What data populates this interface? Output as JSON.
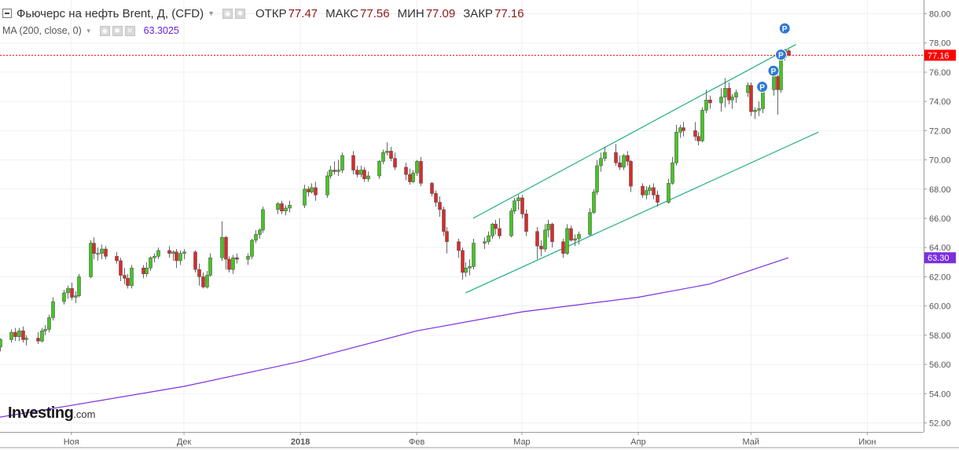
{
  "header": {
    "title": "Фьючерс на нефть Brent, Д, (CFD)",
    "open_label": "ОТКР",
    "open_value": "77.47",
    "high_label": "МАКС",
    "high_value": "77.56",
    "low_label": "МИН",
    "low_value": "77.09",
    "close_label": "ЗАКР",
    "close_value": "77.16"
  },
  "indicator": {
    "label": "MA (200, close, 0)",
    "value": "63.3025"
  },
  "logo": {
    "name": "Investing",
    "suffix": ".com"
  },
  "colors": {
    "up": "#43c71f",
    "down": "#dc2a2a",
    "ma": "#7b2fe0",
    "channel": "#1fae86",
    "last_price": "#ff0000",
    "grid": "#f0f0f0"
  },
  "icons": [
    "collapse-icon",
    "settings-icon",
    "gear-icon",
    "close-icon",
    "eye-icon"
  ],
  "chart_data": {
    "type": "candlestick",
    "title": "Фьючерс на нефть Brent, Д, (CFD)",
    "y_ticks": [
      "80.00",
      "78.00",
      "76.00",
      "74.00",
      "72.00",
      "70.00",
      "68.00",
      "66.00",
      "64.00",
      "62.00",
      "60.00",
      "58.00",
      "56.00",
      "54.00",
      "52.00"
    ],
    "ylim": [
      51.5,
      81
    ],
    "xlim": [
      "2017-10-13",
      "2018-06-16"
    ],
    "x_ticks": [
      {
        "date": "2017-11-01",
        "label": "Ноя"
      },
      {
        "date": "2017-12-01",
        "label": "Дек"
      },
      {
        "date": "2018-01-01",
        "label": "2018",
        "bold": true
      },
      {
        "date": "2018-02-01",
        "label": "Фев"
      },
      {
        "date": "2018-03-01",
        "label": "Мар"
      },
      {
        "date": "2018-04-01",
        "label": "Апр"
      },
      {
        "date": "2018-05-01",
        "label": "Май"
      },
      {
        "date": "2018-06-01",
        "label": "Июн"
      }
    ],
    "last_price": "77.16",
    "ma_last": "63.30",
    "candles": [
      [
        "2017-10-13",
        57.2,
        57.8,
        56.9,
        57.7
      ],
      [
        "2017-10-16",
        57.7,
        58.4,
        57.5,
        58.2
      ],
      [
        "2017-10-17",
        58.2,
        58.5,
        57.6,
        57.9
      ],
      [
        "2017-10-18",
        57.9,
        58.5,
        57.6,
        58.3
      ],
      [
        "2017-10-19",
        58.3,
        58.6,
        57.5,
        57.7
      ],
      [
        "2017-10-20",
        57.7,
        58.0,
        57.3,
        57.8
      ],
      [
        "2017-10-23",
        57.8,
        58.2,
        57.4,
        57.6
      ],
      [
        "2017-10-24",
        57.6,
        58.5,
        57.5,
        58.3
      ],
      [
        "2017-10-25",
        58.3,
        58.7,
        58.0,
        58.4
      ],
      [
        "2017-10-26",
        58.4,
        59.4,
        58.2,
        59.2
      ],
      [
        "2017-10-27",
        59.2,
        60.6,
        59.0,
        60.3
      ],
      [
        "2017-10-30",
        60.3,
        61.1,
        60.1,
        60.9
      ],
      [
        "2017-10-31",
        60.9,
        61.4,
        60.5,
        61.2
      ],
      [
        "2017-11-01",
        61.2,
        61.6,
        60.4,
        60.6
      ],
      [
        "2017-11-02",
        60.6,
        61.0,
        60.2,
        60.7
      ],
      [
        "2017-11-03",
        60.7,
        62.2,
        60.6,
        62.0
      ],
      [
        "2017-11-06",
        62.0,
        64.5,
        61.9,
        64.3
      ],
      [
        "2017-11-07",
        64.3,
        64.7,
        63.2,
        63.6
      ],
      [
        "2017-11-08",
        63.6,
        64.0,
        63.1,
        63.6
      ],
      [
        "2017-11-09",
        63.6,
        64.2,
        63.2,
        63.9
      ],
      [
        "2017-11-10",
        63.9,
        64.1,
        63.2,
        63.4
      ],
      [
        "2017-11-13",
        63.4,
        63.7,
        62.9,
        63.1
      ],
      [
        "2017-11-14",
        63.1,
        63.3,
        61.7,
        62.1
      ],
      [
        "2017-11-15",
        62.1,
        62.6,
        61.5,
        61.9
      ],
      [
        "2017-11-16",
        61.9,
        62.2,
        61.2,
        61.4
      ],
      [
        "2017-11-17",
        61.4,
        62.8,
        61.2,
        62.6
      ],
      [
        "2017-11-20",
        62.6,
        62.8,
        61.9,
        62.2
      ],
      [
        "2017-11-21",
        62.2,
        63.0,
        62.0,
        62.6
      ],
      [
        "2017-11-22",
        62.6,
        63.4,
        62.4,
        63.3
      ],
      [
        "2017-11-23",
        63.3,
        63.6,
        63.0,
        63.4
      ],
      [
        "2017-11-24",
        63.4,
        64.0,
        63.2,
        63.8
      ],
      [
        "2017-11-27",
        63.8,
        64.1,
        63.3,
        63.6
      ],
      [
        "2017-11-28",
        63.6,
        63.8,
        63.1,
        63.7
      ],
      [
        "2017-11-29",
        63.7,
        63.9,
        62.6,
        63.1
      ],
      [
        "2017-11-30",
        63.1,
        63.8,
        62.8,
        63.6
      ],
      [
        "2017-12-01",
        63.6,
        63.9,
        63.2,
        63.7
      ],
      [
        "2017-12-04",
        63.7,
        63.8,
        62.3,
        62.5
      ],
      [
        "2017-12-05",
        62.5,
        62.9,
        61.4,
        62.0
      ],
      [
        "2017-12-06",
        62.0,
        62.3,
        61.2,
        61.3
      ],
      [
        "2017-12-07",
        61.3,
        62.4,
        61.2,
        62.1
      ],
      [
        "2017-12-08",
        62.1,
        63.6,
        62.0,
        63.3
      ],
      [
        "2017-12-11",
        63.3,
        65.8,
        63.1,
        64.7
      ],
      [
        "2017-12-12",
        64.7,
        64.8,
        62.5,
        63.2
      ],
      [
        "2017-12-13",
        63.2,
        63.4,
        62.3,
        62.5
      ],
      [
        "2017-12-14",
        62.5,
        63.5,
        62.2,
        63.3
      ],
      [
        "2017-12-15",
        63.3,
        63.6,
        62.9,
        63.2
      ],
      [
        "2017-12-18",
        63.2,
        63.6,
        62.8,
        63.4
      ],
      [
        "2017-12-19",
        63.4,
        64.6,
        63.2,
        64.5
      ],
      [
        "2017-12-20",
        64.5,
        65.2,
        64.3,
        64.9
      ],
      [
        "2017-12-21",
        64.9,
        65.3,
        64.6,
        65.2
      ],
      [
        "2017-12-22",
        65.2,
        66.8,
        65.0,
        66.6
      ],
      [
        "2017-12-26",
        66.6,
        67.1,
        66.3,
        67.0
      ],
      [
        "2017-12-27",
        67.0,
        67.2,
        66.3,
        66.5
      ],
      [
        "2017-12-28",
        66.5,
        66.9,
        66.2,
        66.7
      ],
      [
        "2017-12-29",
        66.7,
        67.2,
        66.4,
        66.9
      ],
      [
        "2018-01-02",
        66.9,
        68.3,
        66.7,
        68.0
      ],
      [
        "2018-01-03",
        68.0,
        68.2,
        67.5,
        67.8
      ],
      [
        "2018-01-04",
        67.8,
        68.4,
        67.7,
        68.1
      ],
      [
        "2018-01-05",
        68.1,
        68.5,
        67.2,
        67.6
      ],
      [
        "2018-01-08",
        67.6,
        69.2,
        67.4,
        68.9
      ],
      [
        "2018-01-09",
        68.9,
        69.6,
        68.7,
        69.3
      ],
      [
        "2018-01-10",
        69.3,
        69.9,
        69.0,
        69.2
      ],
      [
        "2018-01-11",
        69.2,
        70.0,
        68.9,
        69.3
      ],
      [
        "2018-01-12",
        69.3,
        70.5,
        69.1,
        70.3
      ],
      [
        "2018-01-15",
        70.3,
        70.6,
        69.0,
        69.3
      ],
      [
        "2018-01-16",
        69.3,
        69.6,
        68.8,
        69.0
      ],
      [
        "2018-01-17",
        69.0,
        69.6,
        68.8,
        69.3
      ],
      [
        "2018-01-18",
        69.3,
        69.5,
        68.5,
        68.7
      ],
      [
        "2018-01-19",
        68.7,
        69.2,
        68.5,
        68.9
      ],
      [
        "2018-01-22",
        68.9,
        70.0,
        68.7,
        69.9
      ],
      [
        "2018-01-23",
        69.9,
        70.7,
        69.7,
        70.5
      ],
      [
        "2018-01-24",
        70.5,
        71.2,
        70.3,
        70.6
      ],
      [
        "2018-01-25",
        70.6,
        70.9,
        69.9,
        70.1
      ],
      [
        "2018-01-26",
        70.1,
        70.5,
        69.3,
        69.5
      ],
      [
        "2018-01-29",
        69.5,
        69.8,
        68.6,
        69.0
      ],
      [
        "2018-01-30",
        69.0,
        69.4,
        68.3,
        68.5
      ],
      [
        "2018-01-31",
        68.5,
        69.3,
        68.4,
        69.1
      ],
      [
        "2018-02-01",
        69.1,
        70.0,
        68.9,
        69.9
      ],
      [
        "2018-02-02",
        69.9,
        70.2,
        68.2,
        68.4
      ],
      [
        "2018-02-05",
        68.4,
        68.5,
        67.5,
        67.7
      ],
      [
        "2018-02-06",
        67.7,
        67.9,
        66.8,
        67.1
      ],
      [
        "2018-02-07",
        67.1,
        67.5,
        66.1,
        66.6
      ],
      [
        "2018-02-08",
        66.6,
        66.8,
        64.8,
        65.1
      ],
      [
        "2018-02-09",
        65.1,
        65.4,
        63.6,
        64.4
      ],
      [
        "2018-02-12",
        64.4,
        64.6,
        63.3,
        63.8
      ],
      [
        "2018-02-13",
        63.8,
        64.0,
        61.8,
        62.3
      ],
      [
        "2018-02-14",
        62.3,
        63.0,
        62.0,
        62.6
      ],
      [
        "2018-02-15",
        62.6,
        63.2,
        62.1,
        62.7
      ],
      [
        "2018-02-16",
        62.7,
        64.6,
        62.5,
        64.3
      ],
      [
        "2018-02-19",
        64.3,
        64.7,
        63.9,
        64.4
      ],
      [
        "2018-02-20",
        64.4,
        65.1,
        64.2,
        64.8
      ],
      [
        "2018-02-21",
        64.8,
        65.7,
        64.6,
        65.6
      ],
      [
        "2018-02-22",
        65.6,
        65.9,
        64.9,
        65.3
      ],
      [
        "2018-02-23",
        65.3,
        66.0,
        64.6,
        64.8
      ],
      [
        "2018-02-26",
        64.8,
        66.7,
        64.7,
        66.5
      ],
      [
        "2018-02-27",
        66.5,
        67.4,
        66.3,
        67.2
      ],
      [
        "2018-02-28",
        67.2,
        67.6,
        66.6,
        67.4
      ],
      [
        "2018-03-01",
        67.4,
        67.6,
        66.0,
        66.3
      ],
      [
        "2018-03-02",
        66.3,
        66.6,
        64.8,
        65.1
      ],
      [
        "2018-03-05",
        65.1,
        65.4,
        63.2,
        64.1
      ],
      [
        "2018-03-06",
        64.1,
        64.5,
        63.4,
        63.9
      ],
      [
        "2018-03-07",
        63.9,
        65.6,
        63.7,
        65.2
      ],
      [
        "2018-03-08",
        65.2,
        65.9,
        64.7,
        65.6
      ],
      [
        "2018-03-09",
        65.6,
        65.7,
        64.0,
        64.4
      ],
      [
        "2018-03-12",
        64.4,
        64.6,
        63.3,
        63.6
      ],
      [
        "2018-03-13",
        63.6,
        65.6,
        63.5,
        65.3
      ],
      [
        "2018-03-14",
        65.3,
        65.5,
        64.4,
        64.5
      ],
      [
        "2018-03-15",
        64.5,
        64.9,
        64.1,
        64.6
      ],
      [
        "2018-03-16",
        64.6,
        65.1,
        64.2,
        64.9
      ],
      [
        "2018-03-19",
        64.9,
        66.7,
        64.8,
        66.4
      ],
      [
        "2018-03-20",
        66.4,
        68.0,
        66.3,
        67.8
      ],
      [
        "2018-03-21",
        67.8,
        70.0,
        67.6,
        69.6
      ],
      [
        "2018-03-22",
        69.6,
        70.5,
        69.2,
        70.1
      ],
      [
        "2018-03-23",
        70.1,
        70.9,
        69.9,
        70.5
      ],
      [
        "2018-03-26",
        70.5,
        71.1,
        69.6,
        69.8
      ],
      [
        "2018-03-27",
        69.8,
        70.3,
        69.3,
        69.5
      ],
      [
        "2018-03-28",
        69.5,
        70.4,
        69.3,
        70.3
      ],
      [
        "2018-03-29",
        70.3,
        70.6,
        69.6,
        69.9
      ],
      [
        "2018-03-30",
        69.9,
        70.0,
        67.8,
        68.2
      ],
      [
        "2018-04-02",
        68.2,
        68.4,
        67.4,
        67.6
      ],
      [
        "2018-04-03",
        67.6,
        68.2,
        67.3,
        67.9
      ],
      [
        "2018-04-04",
        67.9,
        68.3,
        67.6,
        68.1
      ],
      [
        "2018-04-05",
        68.1,
        68.4,
        67.3,
        67.6
      ],
      [
        "2018-04-06",
        67.6,
        67.9,
        66.8,
        67.1
      ],
      [
        "2018-04-09",
        67.1,
        68.7,
        67.0,
        68.4
      ],
      [
        "2018-04-10",
        68.4,
        70.2,
        68.3,
        69.8
      ],
      [
        "2018-04-11",
        69.8,
        72.4,
        69.6,
        71.9
      ],
      [
        "2018-04-12",
        71.9,
        72.4,
        71.5,
        72.2
      ],
      [
        "2018-04-13",
        72.2,
        72.6,
        71.6,
        72.0
      ],
      [
        "2018-04-16",
        72.0,
        72.6,
        71.3,
        71.6
      ],
      [
        "2018-04-17",
        71.6,
        71.9,
        71.0,
        71.3
      ],
      [
        "2018-04-18",
        71.3,
        73.6,
        71.2,
        73.4
      ],
      [
        "2018-04-19",
        73.4,
        74.8,
        73.2,
        74.1
      ],
      [
        "2018-04-20",
        74.1,
        74.4,
        73.5,
        73.9
      ],
      [
        "2018-04-23",
        73.9,
        74.9,
        73.3,
        74.3
      ],
      [
        "2018-04-24",
        74.3,
        75.6,
        73.6,
        74.9
      ],
      [
        "2018-04-25",
        74.9,
        75.3,
        73.8,
        74.1
      ],
      [
        "2018-04-26",
        74.1,
        74.5,
        73.5,
        74.3
      ],
      [
        "2018-04-27",
        74.3,
        74.8,
        73.9,
        74.6
      ],
      [
        "2018-04-30",
        74.6,
        75.3,
        74.3,
        75.1
      ],
      [
        "2018-05-01",
        75.1,
        75.3,
        73.0,
        73.3
      ],
      [
        "2018-05-02",
        73.3,
        73.6,
        72.8,
        73.4
      ],
      [
        "2018-05-03",
        73.4,
        74.0,
        73.0,
        73.5
      ],
      [
        "2018-05-04",
        73.5,
        75.0,
        73.2,
        74.8
      ],
      [
        "2018-05-07",
        74.8,
        76.0,
        74.4,
        75.7
      ],
      [
        "2018-05-08",
        75.7,
        76.0,
        73.1,
        74.8
      ],
      [
        "2018-05-09",
        74.8,
        77.3,
        74.6,
        77.0
      ],
      [
        "2018-05-10",
        77.0,
        77.6,
        76.8,
        77.5
      ],
      [
        "2018-05-11",
        77.47,
        77.56,
        77.09,
        77.16
      ]
    ],
    "ma200": [
      [
        "2017-10-13",
        52.4
      ],
      [
        "2017-11-01",
        53.2
      ],
      [
        "2017-12-01",
        54.5
      ],
      [
        "2018-01-01",
        56.2
      ],
      [
        "2018-02-01",
        58.3
      ],
      [
        "2018-03-01",
        59.6
      ],
      [
        "2018-04-01",
        60.6
      ],
      [
        "2018-04-20",
        61.5
      ],
      [
        "2018-05-11",
        63.3
      ]
    ],
    "channel_lines": [
      {
        "from": [
          "2018-02-16",
          66.0
        ],
        "to": [
          "2018-05-13",
          77.9
        ]
      },
      {
        "from": [
          "2018-02-14",
          60.9
        ],
        "to": [
          "2018-05-19",
          71.9
        ]
      }
    ],
    "dividend_markers": [
      {
        "date": "2018-05-04",
        "price": 75.0,
        "label": "P"
      },
      {
        "date": "2018-05-07",
        "price": 76.1,
        "label": "P"
      },
      {
        "date": "2018-05-09",
        "price": 77.2,
        "label": "P"
      },
      {
        "date": "2018-05-10",
        "price": 79.0,
        "label": "P"
      }
    ]
  }
}
